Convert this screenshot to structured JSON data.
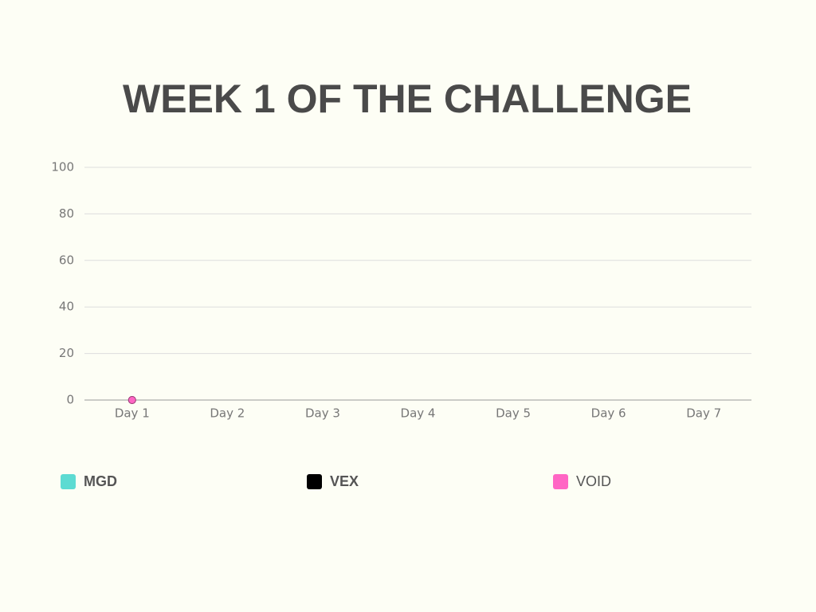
{
  "chart_data": {
    "type": "line",
    "title": "WEEK 1 OF THE CHALLENGE",
    "categories": [
      "Day 1",
      "Day 2",
      "Day 3",
      "Day 4",
      "Day 5",
      "Day 6",
      "Day 7"
    ],
    "series": [
      {
        "name": "MGD",
        "color": "#5ddbd2",
        "values": [
          0,
          null,
          null,
          null,
          null,
          null,
          null
        ]
      },
      {
        "name": "VEX",
        "color": "#000000",
        "values": [
          0,
          null,
          null,
          null,
          null,
          null,
          null
        ]
      },
      {
        "name": "VOID",
        "color": "#ff66c4",
        "values": [
          0,
          null,
          null,
          null,
          null,
          null,
          null
        ]
      }
    ],
    "ylim": [
      0,
      100
    ],
    "yticks": [
      0,
      20,
      40,
      60,
      80,
      100
    ],
    "grid": true,
    "legend": "bottom"
  }
}
